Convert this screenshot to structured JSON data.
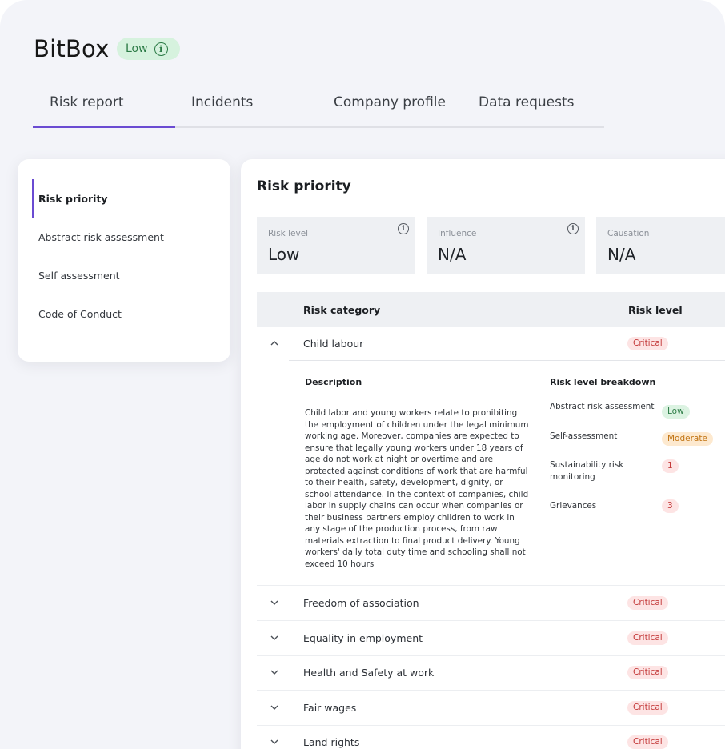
{
  "header": {
    "company_name": "BitBox",
    "risk_pill": "Low",
    "info_glyph": "i"
  },
  "tabs": [
    {
      "label": "Risk report"
    },
    {
      "label": "Incidents"
    },
    {
      "label": "Company profile"
    },
    {
      "label": "Data requests"
    }
  ],
  "active_tab": "Risk report",
  "sidenav": {
    "items": [
      {
        "label": "Risk priority"
      },
      {
        "label": "Abstract risk assessment"
      },
      {
        "label": "Self assessment"
      },
      {
        "label": "Code of Conduct"
      }
    ]
  },
  "main": {
    "title": "Risk priority",
    "metrics": [
      {
        "label": "Risk level",
        "value": "Low"
      },
      {
        "label": "Influence",
        "value": "N/A"
      },
      {
        "label": "Causation",
        "value": "N/A"
      }
    ],
    "table": {
      "headers": {
        "category": "Risk category",
        "level": "Risk level"
      },
      "expanded": {
        "category": "Child labour",
        "level": "Critical",
        "description_title": "Description",
        "description": "Child labor and young workers relate to prohibiting the employment of children under the legal minimum working age. Moreover, companies are expected to ensure that legally young workers under 18 years of age do not work at night or overtime and are protected against conditions of work that are harmful to their health, safety, development, dignity, or school attendance. In the context of companies, child labor in supply chains can occur when companies or their business partners employ children to work in any stage of the production process, from raw materials extraction to final product delivery. Young workers' daily total duty time and schooling shall not exceed 10 hours",
        "breakdown_title": "Risk level breakdown",
        "breakdown": [
          {
            "label": "Abstract risk assessment",
            "value": "Low"
          },
          {
            "label": "Self-assessment",
            "value": "Moderate"
          },
          {
            "label": "Sustainability risk monitoring",
            "value": "1"
          },
          {
            "label": "Grievances",
            "value": "3"
          }
        ]
      },
      "rows": [
        {
          "category": "Freedom of association",
          "level": "Critical"
        },
        {
          "category": "Equality in employment",
          "level": "Critical"
        },
        {
          "category": "Health and Safety at work",
          "level": "Critical"
        },
        {
          "category": "Fair wages",
          "level": "Critical"
        },
        {
          "category": "Land rights",
          "level": "Critical"
        }
      ]
    }
  },
  "colors": {
    "accent": "#6a4bd2",
    "critical": "#c43b3b",
    "low": "#2e7d47",
    "moderate": "#c27515"
  },
  "icons": {
    "collapse": "chevron-up-icon",
    "expand": "chevron-down-icon",
    "info": "info-icon"
  }
}
